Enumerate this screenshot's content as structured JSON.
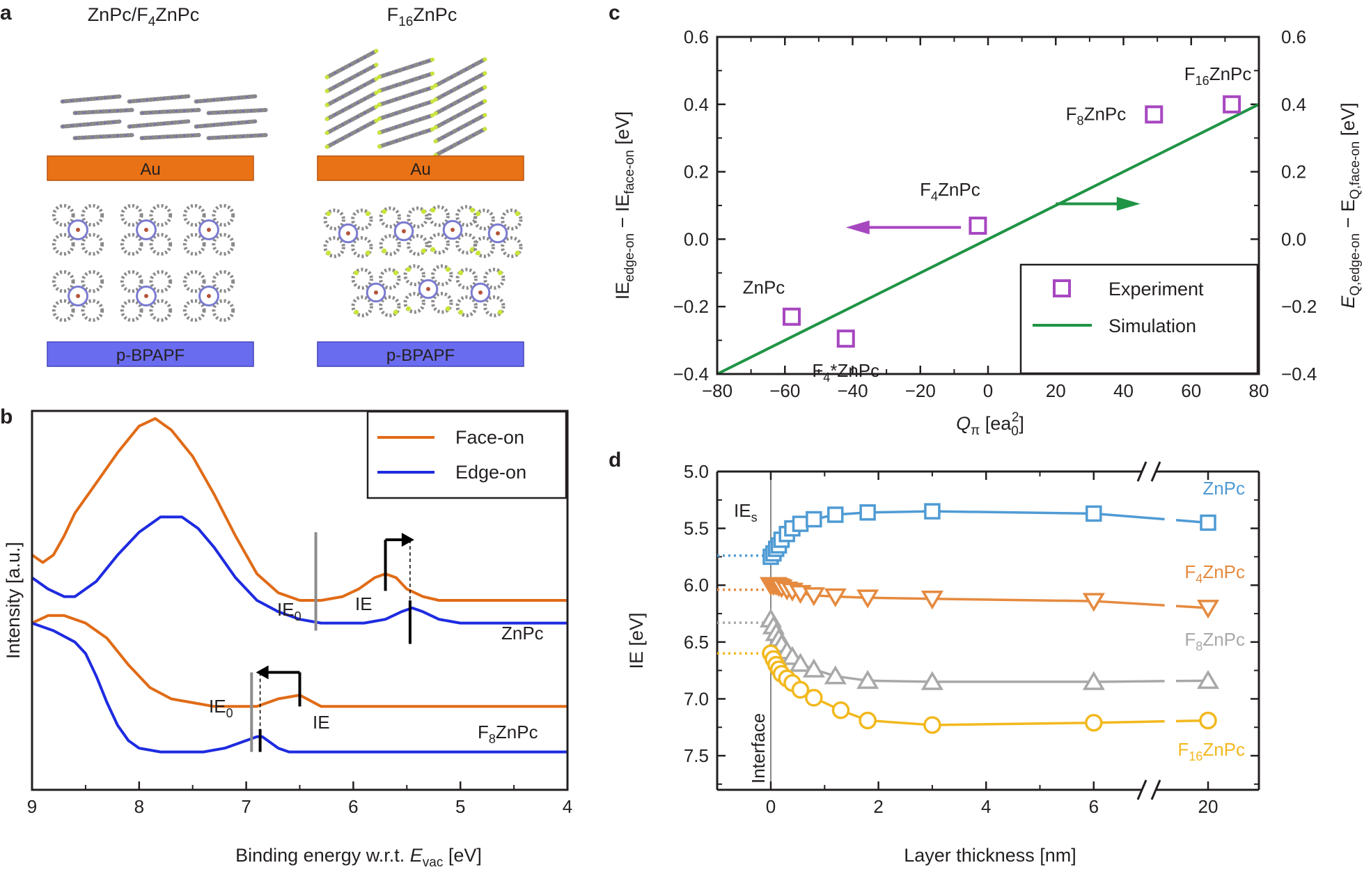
{
  "colors": {
    "orange": "#e06b16",
    "blue": "#1e2be0",
    "gray": "#8c8c8c",
    "purple": "#a747c0",
    "green": "#1f9445",
    "zn_blue": "#4f9bd4",
    "f4_orange": "#e58a3f",
    "f8_gray": "#a8a8a8",
    "f16_yellow": "#f2b81e",
    "au_fill": "#e87215",
    "bpapf_fill": "#6a6cf0"
  },
  "panels": {
    "a": {
      "letter": "a",
      "col1_title_pre": "ZnPc/F",
      "col1_title_sub": "4",
      "col1_title_post": "ZnPc",
      "col2_title_pre": "F",
      "col2_title_sub": "16",
      "col2_title_post": "ZnPc",
      "substrate_top": "Au",
      "substrate_bottom": "p-BPAPF"
    },
    "b": {
      "letter": "b"
    },
    "c": {
      "letter": "c"
    },
    "d": {
      "letter": "d"
    }
  },
  "chart_data": [
    {
      "panel": "b",
      "type": "line",
      "xlabel_pre": "Binding energy w.r.t. ",
      "xlabel_sym": "E",
      "xlabel_sub": "vac",
      "xlabel_post": " [eV]",
      "ylabel": "Intensity [a.u.]",
      "xlim": [
        9,
        4
      ],
      "x_reversed": true,
      "x_ticks": [
        "9",
        "8",
        "7",
        "6",
        "5",
        "4"
      ],
      "legend": {
        "position": "top-right",
        "items": [
          "Face-on",
          "Edge-on"
        ]
      },
      "series": [
        {
          "name": "Face-on",
          "material": "ZnPc",
          "color": "orange",
          "x": [
            9.0,
            8.9,
            8.8,
            8.7,
            8.6,
            8.4,
            8.2,
            8.0,
            7.85,
            7.7,
            7.5,
            7.3,
            7.1,
            6.9,
            6.7,
            6.5,
            6.3,
            6.1,
            5.95,
            5.8,
            5.7,
            5.6,
            5.5,
            5.35,
            5.2,
            5.0,
            4.5,
            4.0
          ],
          "y": [
            0.62,
            0.6,
            0.62,
            0.67,
            0.73,
            0.81,
            0.89,
            0.96,
            0.98,
            0.95,
            0.88,
            0.78,
            0.67,
            0.57,
            0.52,
            0.5,
            0.5,
            0.51,
            0.53,
            0.56,
            0.57,
            0.56,
            0.53,
            0.51,
            0.5,
            0.5,
            0.5,
            0.5
          ]
        },
        {
          "name": "Edge-on",
          "material": "ZnPc",
          "color": "blue",
          "x": [
            9.0,
            8.85,
            8.7,
            8.6,
            8.4,
            8.2,
            8.0,
            7.8,
            7.6,
            7.45,
            7.3,
            7.1,
            6.9,
            6.7,
            6.5,
            6.3,
            6.1,
            5.9,
            5.7,
            5.55,
            5.45,
            5.35,
            5.2,
            5.0,
            4.5,
            4.0
          ],
          "y": [
            0.56,
            0.53,
            0.51,
            0.51,
            0.55,
            0.62,
            0.68,
            0.72,
            0.72,
            0.69,
            0.64,
            0.56,
            0.5,
            0.47,
            0.45,
            0.44,
            0.44,
            0.44,
            0.45,
            0.47,
            0.48,
            0.47,
            0.45,
            0.44,
            0.44,
            0.44
          ]
        },
        {
          "name": "Face-on",
          "material": "F8ZnPc",
          "color": "orange",
          "x": [
            9.0,
            8.85,
            8.7,
            8.5,
            8.3,
            8.1,
            7.9,
            7.7,
            7.5,
            7.3,
            7.1,
            6.9,
            6.7,
            6.5,
            6.3,
            6.1,
            5.5,
            5.0,
            4.5,
            4.0
          ],
          "y": [
            0.44,
            0.46,
            0.46,
            0.44,
            0.4,
            0.33,
            0.27,
            0.24,
            0.23,
            0.22,
            0.22,
            0.22,
            0.24,
            0.25,
            0.22,
            0.22,
            0.22,
            0.22,
            0.22,
            0.22
          ]
        },
        {
          "name": "Edge-on",
          "material": "F8ZnPc",
          "color": "blue",
          "x": [
            9.0,
            8.8,
            8.6,
            8.5,
            8.4,
            8.3,
            8.2,
            8.1,
            8.0,
            7.8,
            7.6,
            7.4,
            7.2,
            7.0,
            6.9,
            6.85,
            6.8,
            6.7,
            6.6,
            6.5,
            6.0,
            5.0,
            4.0
          ],
          "y": [
            0.44,
            0.42,
            0.39,
            0.36,
            0.3,
            0.23,
            0.17,
            0.13,
            0.11,
            0.1,
            0.1,
            0.1,
            0.11,
            0.13,
            0.14,
            0.14,
            0.13,
            0.11,
            0.1,
            0.1,
            0.1,
            0.1,
            0.1
          ]
        }
      ],
      "annotations": {
        "ie0_label_pre": "IE",
        "ie0_label_sub": "0",
        "ie_label": "IE",
        "znpc_label": "ZnPc",
        "f8_label_pre": "F",
        "f8_label_sub": "8",
        "f8_label_post": "ZnPc",
        "ie0_znpc_x": 6.35,
        "ie_face_znpc_x": 5.7,
        "ie_edge_znpc_x": 5.47,
        "ie0_f8_x": 6.95,
        "ie_face_f8_x": 6.5,
        "ie_edge_f8_x": 6.87
      }
    },
    {
      "panel": "c",
      "type": "scatter",
      "xlabel_sym": "Q",
      "xlabel_sub": "π",
      "xlabel_post": " [ea",
      "xlabel_sub2": "0",
      "xlabel_sup2": "2",
      "xlabel_end": "]",
      "ylabel_left_pre": "IE",
      "ylabel_left_sub1": "edge-on",
      "ylabel_left_mid": " − IE",
      "ylabel_left_sub2": "face-on",
      "ylabel_left_post": " [eV]",
      "ylabel_right_sym": "E",
      "ylabel_right_sub1": "Q,edge-on",
      "ylabel_right_mid": " − E",
      "ylabel_right_sub2": "Q,face-on",
      "ylabel_right_post": " [eV]",
      "xlim": [
        -80,
        80
      ],
      "ylim": [
        -0.4,
        0.6
      ],
      "x_ticks": [
        "−80",
        "−60",
        "−40",
        "−20",
        "0",
        "20",
        "40",
        "60",
        "80"
      ],
      "y_ticks": [
        "−0.4",
        "−0.2",
        "0.0",
        "0.2",
        "0.4",
        "0.6"
      ],
      "legend": {
        "position": "bottom-right",
        "items": [
          "Experiment",
          "Simulation"
        ]
      },
      "experiment": [
        {
          "label_pre": "ZnPc",
          "label_sub": "",
          "label_post": "",
          "x": -58,
          "y": -0.23
        },
        {
          "label_pre": "F",
          "label_sub": "4",
          "label_post": "*ZnPc",
          "x": -42,
          "y": -0.295
        },
        {
          "label_pre": "F",
          "label_sub": "4",
          "label_post": "ZnPc",
          "x": -3,
          "y": 0.04
        },
        {
          "label_pre": "F",
          "label_sub": "8",
          "label_post": "ZnPc",
          "x": 49,
          "y": 0.37
        },
        {
          "label_pre": "F",
          "label_sub": "16",
          "label_post": "ZnPc",
          "x": 72,
          "y": 0.4
        }
      ],
      "simulation": {
        "x": [
          -80,
          80
        ],
        "y": [
          -0.4,
          0.4
        ]
      }
    },
    {
      "panel": "d",
      "type": "line",
      "xlabel": "Layer thickness [nm]",
      "ylabel": "IE [eV]",
      "ylim": [
        7.8,
        5.0
      ],
      "y_reversed": true,
      "x_ticks": [
        "0",
        "2",
        "4",
        "6",
        "20"
      ],
      "y_ticks": [
        "5.0",
        "5.5",
        "6.0",
        "6.5",
        "7.0",
        "7.5"
      ],
      "ies_label_pre": "IE",
      "ies_label_sub": "s",
      "interface_label": "Interface",
      "series": [
        {
          "name_pre": "ZnPc",
          "name_sub": "",
          "name_post": "",
          "color": "zn_blue",
          "marker": "square",
          "ies": 5.74,
          "x": [
            0,
            0.05,
            0.1,
            0.15,
            0.2,
            0.3,
            0.4,
            0.55,
            0.8,
            1.2,
            1.8,
            3.0,
            6.0
          ],
          "y": [
            5.75,
            5.72,
            5.68,
            5.65,
            5.6,
            5.55,
            5.5,
            5.46,
            5.42,
            5.38,
            5.36,
            5.35,
            5.37
          ],
          "x20": 20,
          "y20": 5.45
        },
        {
          "name_pre": "F",
          "name_sub": "4",
          "name_post": "ZnPc",
          "color": "f4_orange",
          "marker": "triangle-down",
          "ies": 6.04,
          "x": [
            0,
            0.05,
            0.1,
            0.15,
            0.2,
            0.3,
            0.4,
            0.55,
            0.8,
            1.2,
            1.8,
            3.0,
            6.0
          ],
          "y": [
            6.0,
            6.0,
            6.0,
            6.01,
            6.02,
            6.04,
            6.05,
            6.07,
            6.09,
            6.1,
            6.11,
            6.12,
            6.14
          ],
          "x20": 20,
          "y20": 6.2
        },
        {
          "name_pre": "F",
          "name_sub": "8",
          "name_post": "ZnPc",
          "color": "f8_gray",
          "marker": "triangle-up",
          "ies": 6.33,
          "x": [
            0,
            0.05,
            0.1,
            0.15,
            0.2,
            0.3,
            0.4,
            0.55,
            0.8,
            1.2,
            1.8,
            3.0,
            6.0
          ],
          "y": [
            6.3,
            6.36,
            6.42,
            6.47,
            6.52,
            6.58,
            6.63,
            6.69,
            6.74,
            6.8,
            6.84,
            6.85,
            6.85
          ],
          "x20": 20,
          "y20": 6.84
        },
        {
          "name_pre": "F",
          "name_sub": "16",
          "name_post": "ZnPc",
          "color": "f16_yellow",
          "marker": "circle",
          "ies": 6.6,
          "x": [
            0,
            0.05,
            0.1,
            0.15,
            0.2,
            0.3,
            0.4,
            0.55,
            0.8,
            1.3,
            1.8,
            3.0,
            6.0
          ],
          "y": [
            6.6,
            6.65,
            6.7,
            6.74,
            6.78,
            6.82,
            6.86,
            6.92,
            6.99,
            7.1,
            7.19,
            7.23,
            7.21
          ],
          "x20": 20,
          "y20": 7.19
        }
      ]
    }
  ]
}
